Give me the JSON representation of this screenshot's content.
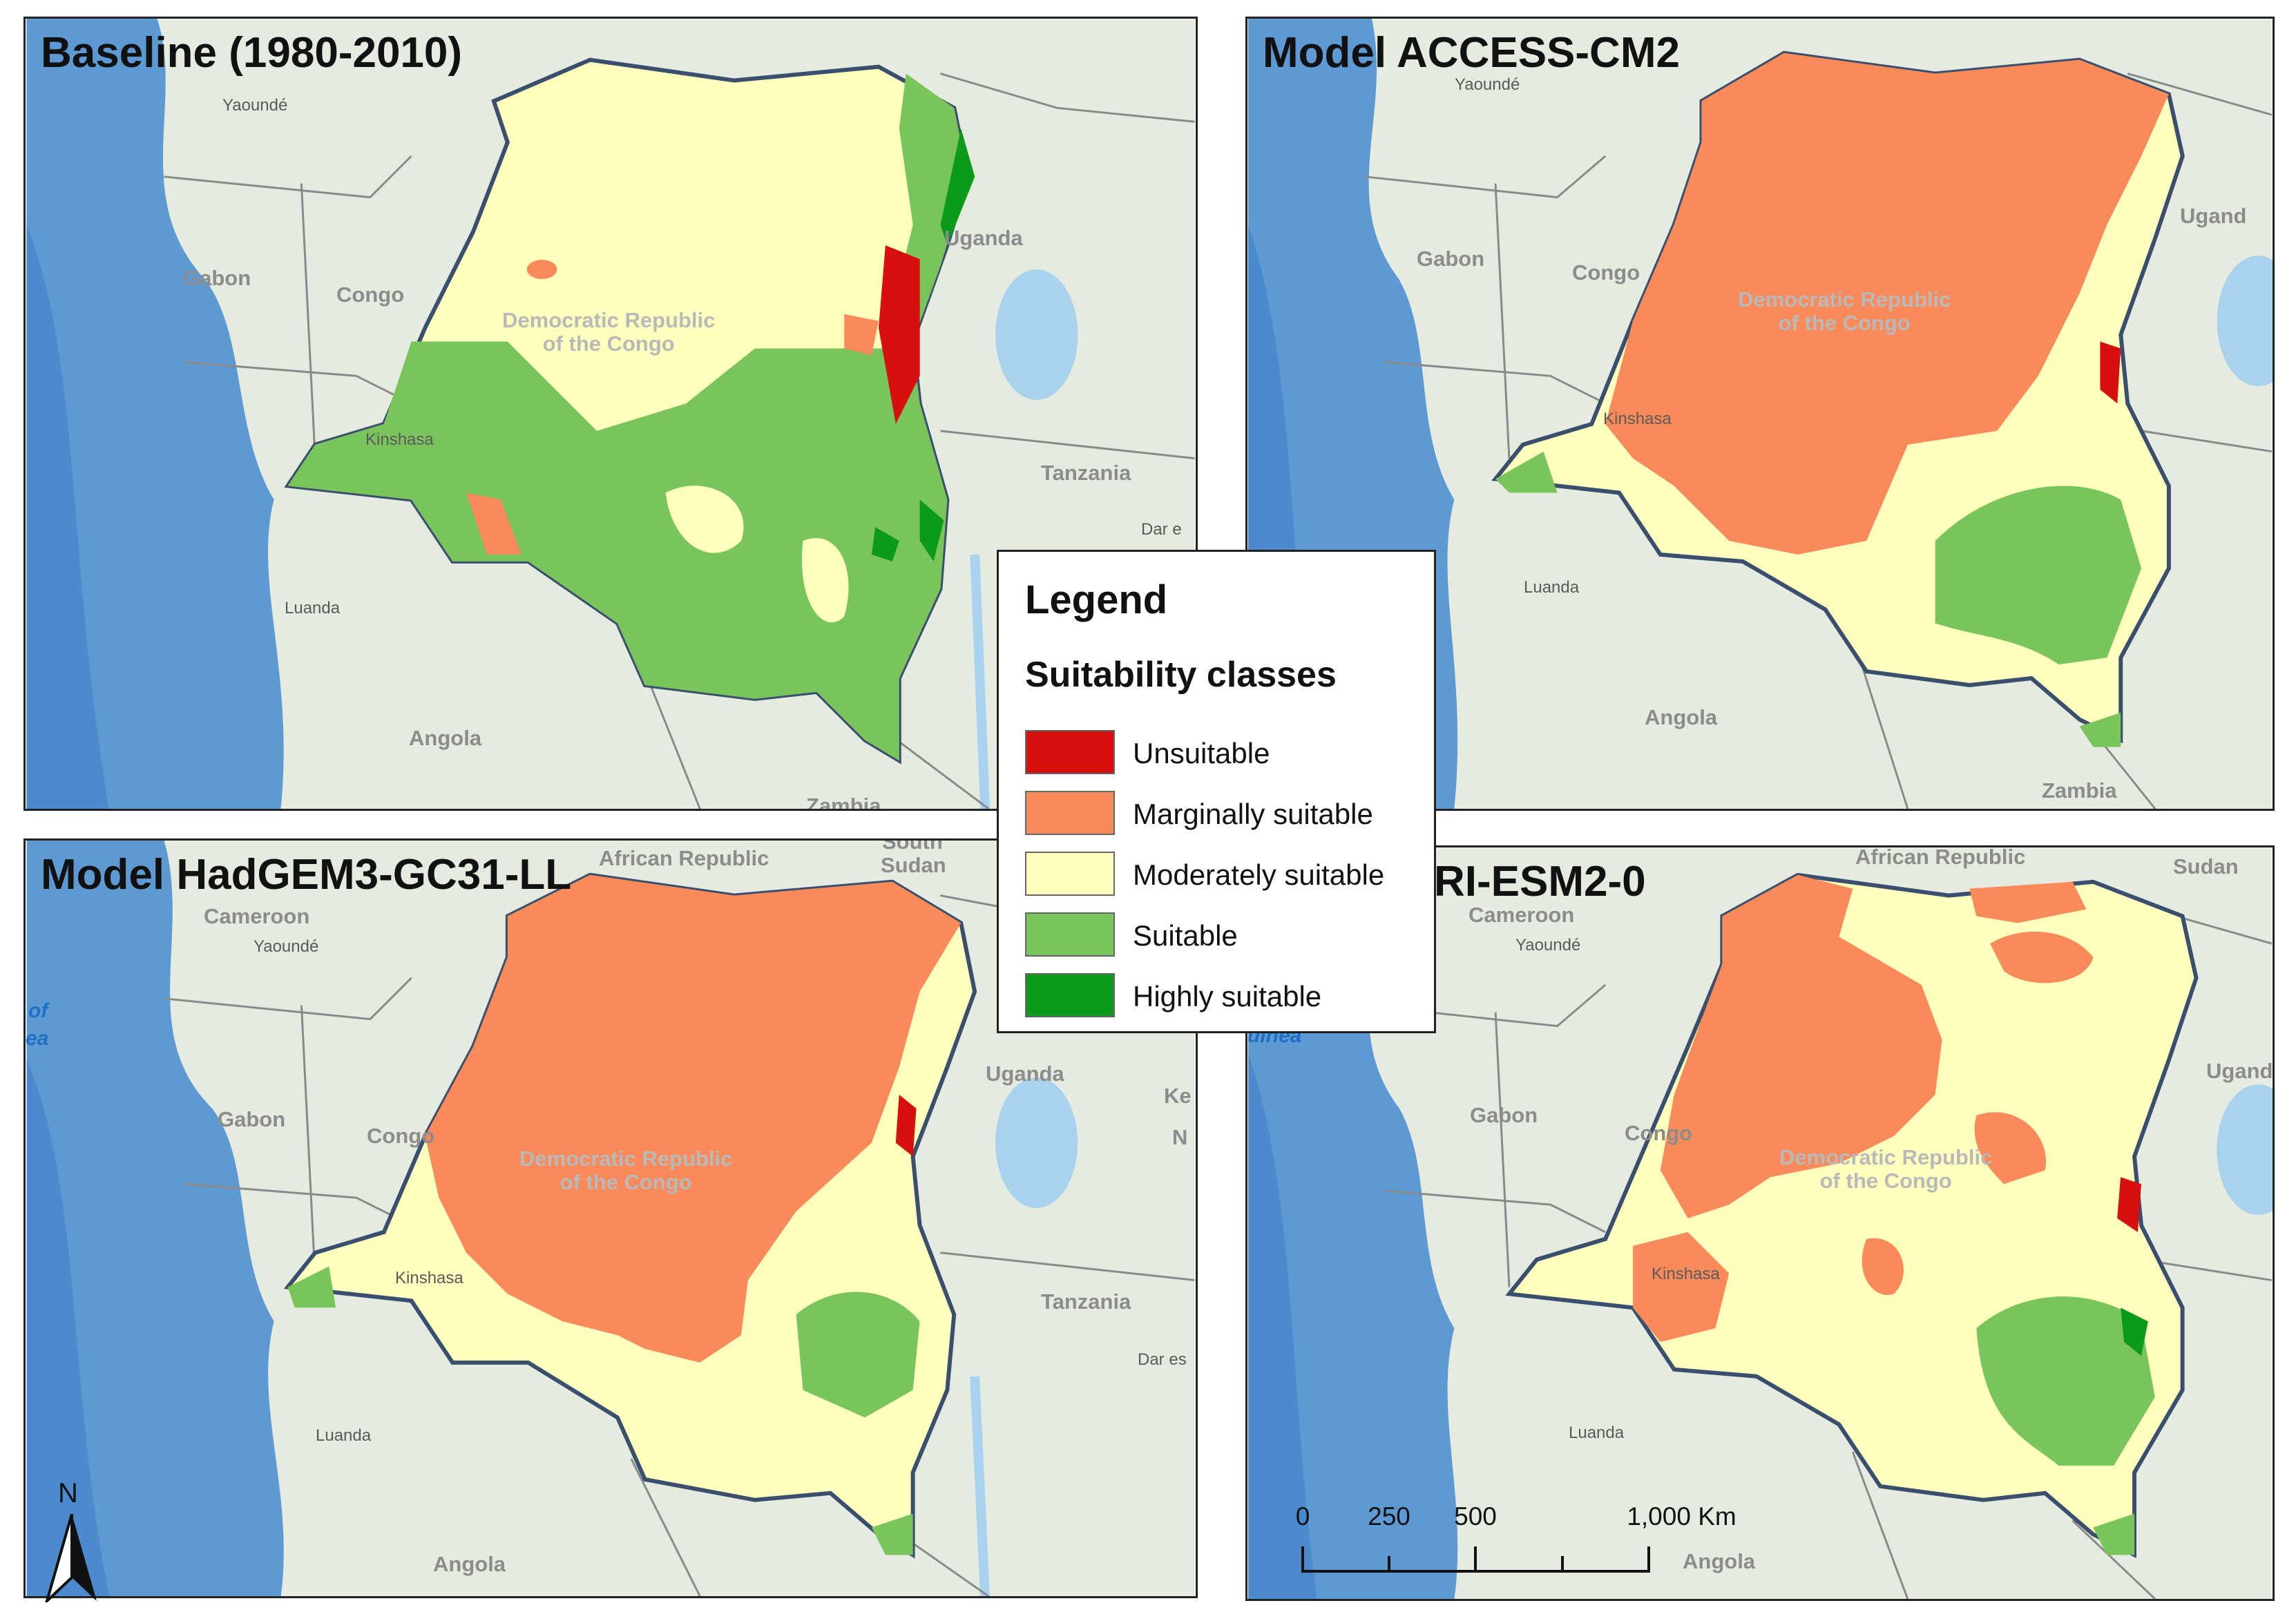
{
  "panels": [
    {
      "title": "Baseline (1980-2010)"
    },
    {
      "title": "Model ACCESS-CM2"
    },
    {
      "title": "Model HadGEM3-GC31-LL"
    },
    {
      "title": "Model MRI-ESM2-0"
    }
  ],
  "place_labels": {
    "yaounde": "Yaoundé",
    "gabon": "Gabon",
    "congo": "Congo",
    "drc_line1": "Democratic Republic",
    "drc_line2": "of the Congo",
    "kinshasa": "Kinshasa",
    "uganda": "Uganda",
    "uganda_partial": "Ugand",
    "tanzania": "Tanzania",
    "dar": "Dar e",
    "dar_alt": "Dar es",
    "luanda": "Luanda",
    "angola": "Angola",
    "zambia": "Zambia",
    "cameroon": "Cameroon",
    "car": "African Republic",
    "south_sudan_1": "South",
    "south_sudan_2": "Sudan",
    "sudan": "Sudan",
    "gulf_1": "of",
    "gulf_2": "ea",
    "gulf_mri": "uinea",
    "k_partial": "Ke",
    "n_partial": "N"
  },
  "legend": {
    "title": "Legend",
    "subtitle": "Suitability classes",
    "items": [
      {
        "label": "Unsuitable",
        "color": "#d7100f"
      },
      {
        "label": "Marginally suitable",
        "color": "#f98a5a"
      },
      {
        "label": "Moderately suitable",
        "color": "#ffffbe"
      },
      {
        "label": "Suitable",
        "color": "#79c55c"
      },
      {
        "label": "Highly suitable",
        "color": "#0c9a1a"
      }
    ]
  },
  "north_arrow": {
    "label": "N"
  },
  "scale_bar": {
    "ticks": [
      "0",
      "250",
      "500",
      "1,000 Km"
    ]
  },
  "basemap_colors": {
    "ocean": "#5d9ad4",
    "ocean_deep": "#3f82c8",
    "land": "#e6ebdf",
    "lake": "#a9d2ef",
    "border": "#8a8a8a",
    "drc_outline": "#3a4f6e"
  }
}
